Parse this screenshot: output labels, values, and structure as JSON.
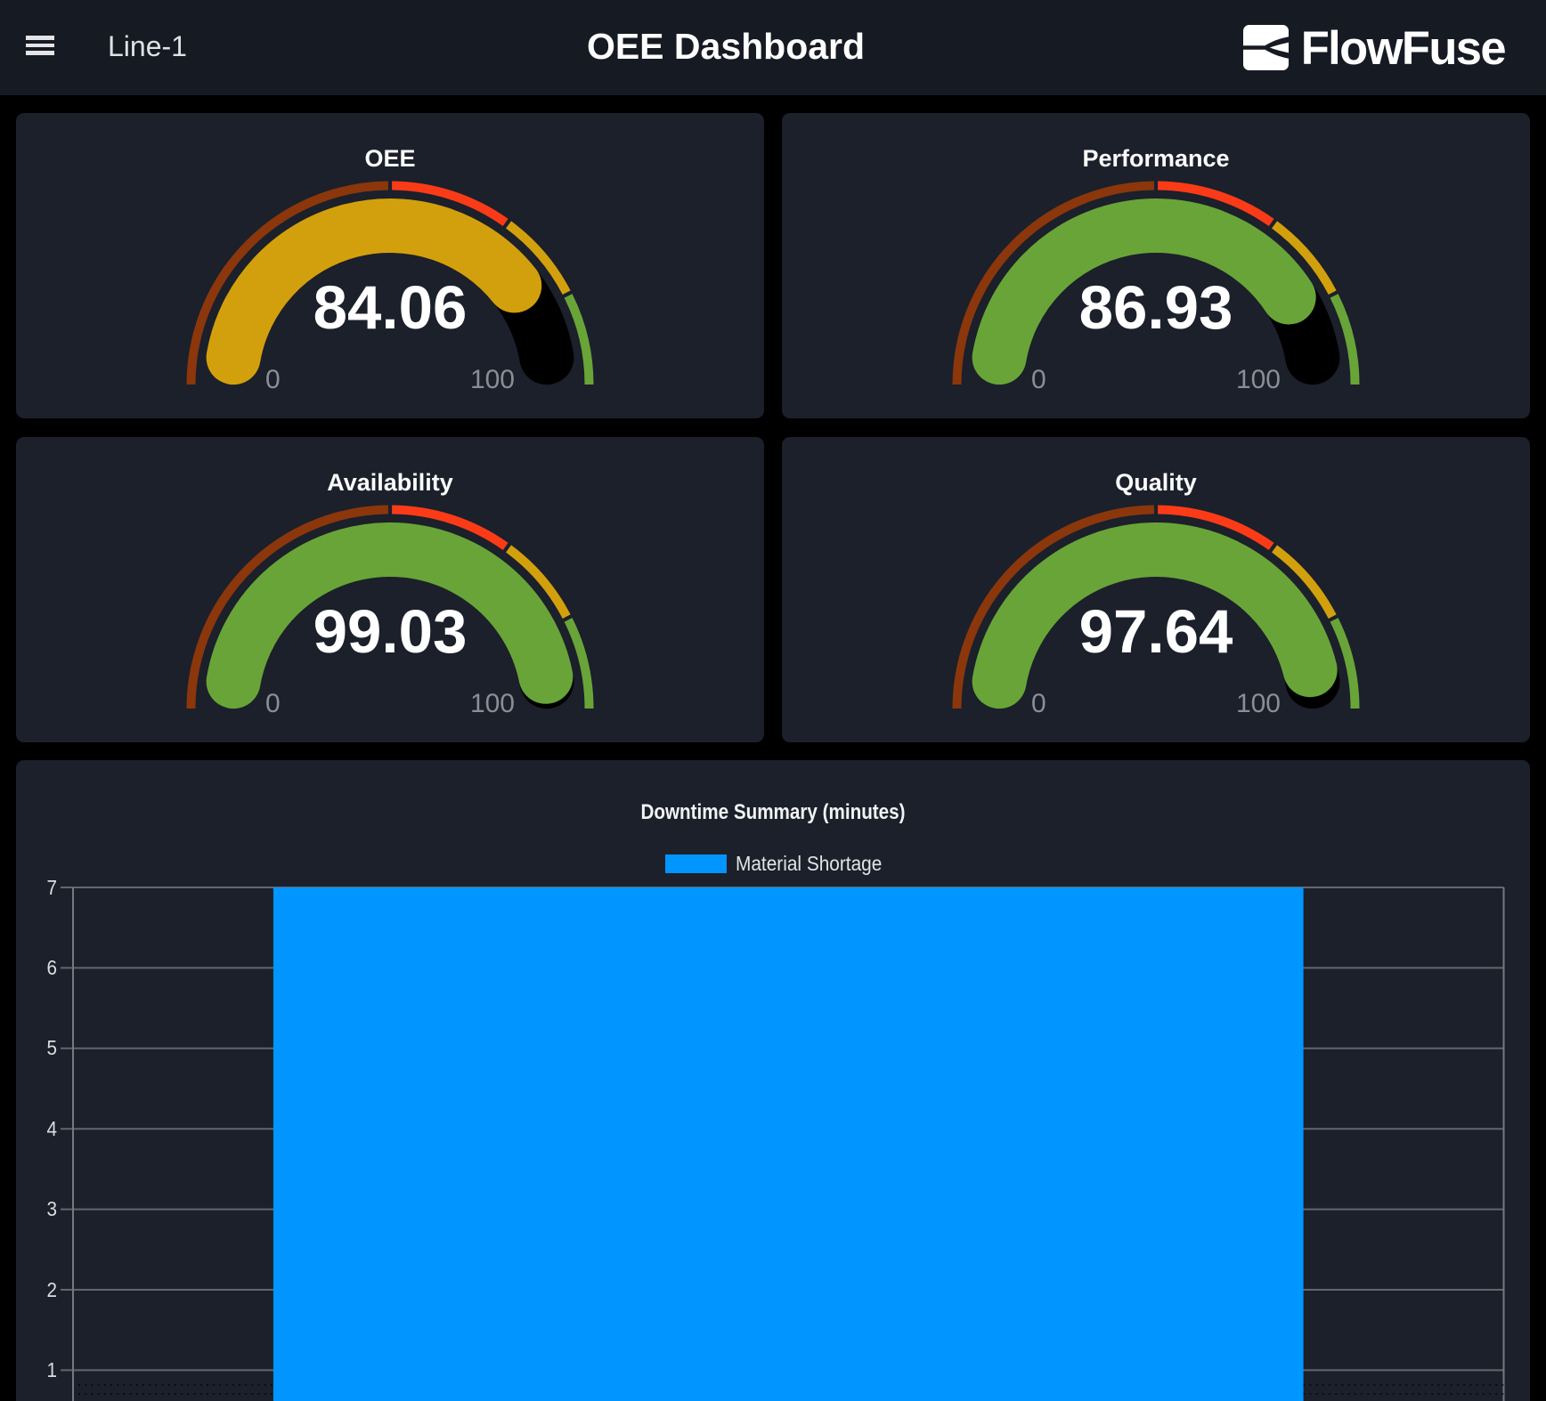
{
  "page": {
    "background": "#000000"
  },
  "header": {
    "breadcrumb": "Line-1",
    "title": "OEE Dashboard",
    "logo_text": "FlowFuse"
  },
  "gauge_config": {
    "min": 0,
    "max": 100,
    "min_label": "0",
    "max_label": "100",
    "segments": [
      {
        "from": 0,
        "to": 50,
        "color": "#8b370b"
      },
      {
        "from": 50,
        "to": 70,
        "color": "#fb3b17"
      },
      {
        "from": 70,
        "to": 85,
        "color": "#d3a00d"
      },
      {
        "from": 85,
        "to": 100,
        "color": "#69a438"
      }
    ],
    "track_color": "#000000"
  },
  "gauges": [
    {
      "title": "OEE",
      "value": 84.06,
      "value_display": "84.06",
      "min_label": "0",
      "max_label": "100",
      "value_color": "#d3a00d"
    },
    {
      "title": "Performance",
      "value": 86.93,
      "value_display": "86.93",
      "min_label": "0",
      "max_label": "100",
      "value_color": "#69a438"
    },
    {
      "title": "Availability",
      "value": 99.03,
      "value_display": "99.03",
      "min_label": "0",
      "max_label": "100",
      "value_color": "#69a438"
    },
    {
      "title": "Quality",
      "value": 97.64,
      "value_display": "97.64",
      "min_label": "0",
      "max_label": "100",
      "value_color": "#69a438"
    }
  ],
  "chart_data": {
    "type": "bar",
    "title": "Downtime Summary (minutes)",
    "legend": [
      {
        "label": "Material Shortage",
        "color": "#0095ff"
      }
    ],
    "categories": [
      "Material Shortage"
    ],
    "series": [
      {
        "name": "Material Shortage",
        "values": [
          7
        ]
      }
    ],
    "xlabel": "",
    "ylabel": "",
    "ylim": [
      0,
      7
    ],
    "yticks": [
      7,
      6,
      5,
      4,
      3,
      2,
      1
    ],
    "grid": true,
    "bar_color": "#0095ff",
    "grid_color": "#63666c",
    "axis_color": "#76797f"
  }
}
